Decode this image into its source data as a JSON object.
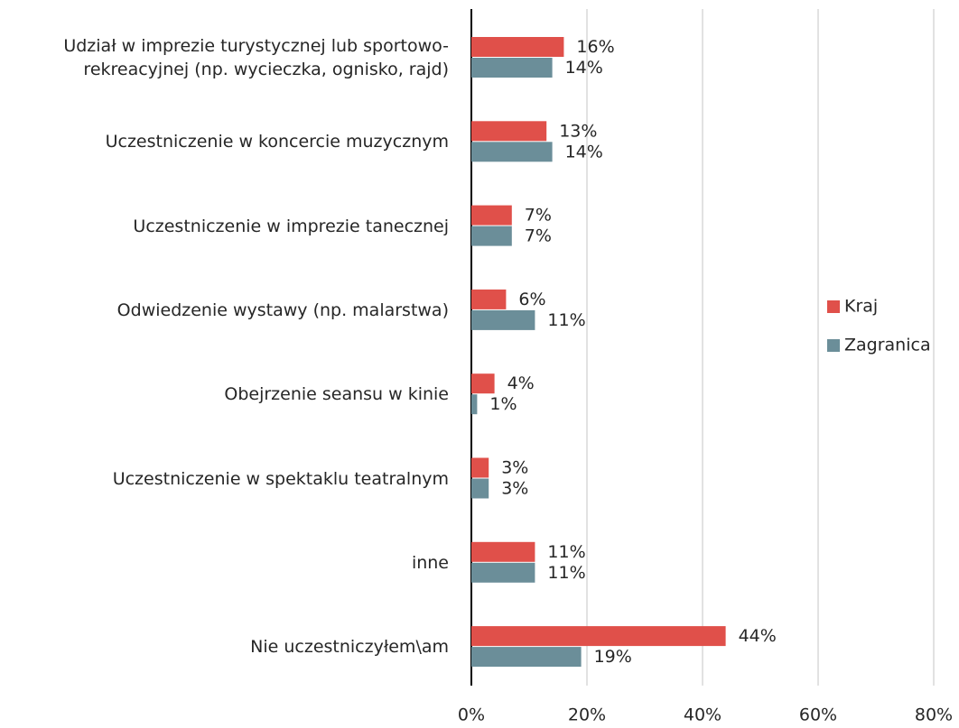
{
  "chart_data": {
    "type": "hbar",
    "categories": [
      "Udział w imprezie turystycznej lub sportowo-\nrekreacyjnej (np. wycieczka, ognisko, rajd)",
      "Uczestniczenie w koncercie muzycznym",
      "Uczestniczenie w imprezie tanecznej",
      "Odwiedzenie wystawy (np. malarstwa)",
      "Obejrzenie seansu w kinie",
      "Uczestniczenie w spektaklu teatralnym",
      "inne",
      "Nie uczestniczyłem\\am"
    ],
    "series": [
      {
        "name": "Kraj",
        "color": "#e0504a",
        "values": [
          16,
          13,
          7,
          6,
          4,
          3,
          11,
          44
        ],
        "value_labels": [
          "16%",
          "13%",
          "7%",
          "6%",
          "4%",
          "3%",
          "11%",
          "44%"
        ]
      },
      {
        "name": "Zagranica",
        "color": "#6b8e99",
        "values": [
          14,
          14,
          7,
          11,
          1,
          3,
          11,
          19
        ],
        "value_labels": [
          "14%",
          "14%",
          "7%",
          "11%",
          "1%",
          "3%",
          "11%",
          "19%"
        ]
      }
    ],
    "xlim": [
      0,
      80
    ],
    "xticks": [
      {
        "value": 0,
        "label": "0%"
      },
      {
        "value": 20,
        "label": "20%"
      },
      {
        "value": 40,
        "label": "40%"
      },
      {
        "value": 60,
        "label": "60%"
      },
      {
        "value": 80,
        "label": "80%"
      }
    ],
    "grid": true,
    "legend": "right"
  }
}
